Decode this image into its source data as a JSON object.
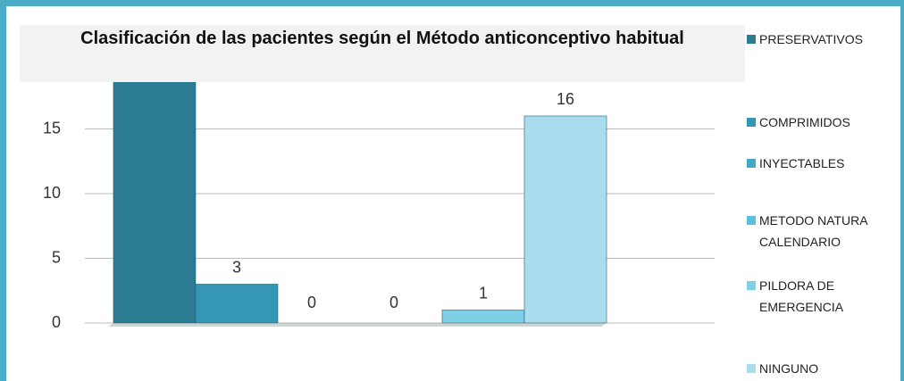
{
  "chart_data": {
    "type": "bar",
    "title": "Clasificación de las pacientes según el Método anticonceptivo habitual",
    "series": [
      {
        "name": "PRESERVATIVOS",
        "color": "#2b7b93",
        "values": [
          20
        ]
      },
      {
        "name": "COMPRIMIDOS",
        "color": "#3597b4",
        "values": [
          3
        ]
      },
      {
        "name": "INYECTABLES",
        "color": "#42a8c6",
        "values": [
          0
        ]
      },
      {
        "name": "METODO NATURA CALENDARIO",
        "color": "#5dbfdb",
        "values": [
          0
        ]
      },
      {
        "name": "PILDORA DE EMERGENCIA",
        "color": "#7fd0e6",
        "values": [
          1
        ]
      },
      {
        "name": "NINGUNO",
        "color": "#a9dcec",
        "values": [
          16
        ]
      }
    ],
    "ylim": [
      0,
      20
    ],
    "yticks": [
      0,
      5,
      10,
      15
    ],
    "grid": true
  }
}
